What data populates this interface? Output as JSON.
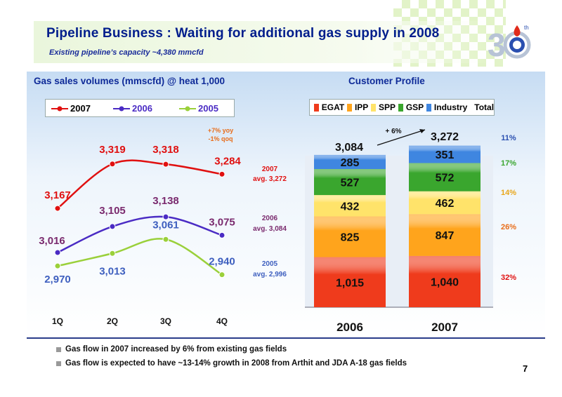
{
  "header": {
    "title": "Pipeline Business : Waiting for additional gas supply in 2008",
    "subtitle": "Existing pipeline’s capacity ~4,380 mmcfd"
  },
  "left_panel": {
    "title": "Gas sales volumes (mmscfd) @ heat 1,000"
  },
  "right_panel": {
    "title": "Customer Profile"
  },
  "colors": {
    "y2007": "#e01010",
    "y2006": "#4a2bc4",
    "y2005": "#9ad03a"
  },
  "chart_data": [
    {
      "type": "line",
      "categories": [
        "1Q",
        "2Q",
        "3Q",
        "4Q"
      ],
      "series": [
        {
          "name": "2007",
          "values": [
            3167,
            3319,
            3318,
            3284
          ],
          "labels": [
            "3,167",
            "3,319",
            "3,318",
            "3,284"
          ]
        },
        {
          "name": "2006",
          "values": [
            3016,
            3105,
            3138,
            3075
          ],
          "labels": [
            "3,016",
            "3,105",
            "3,138",
            "3,075"
          ]
        },
        {
          "name": "2005",
          "values": [
            2970,
            3013,
            3061,
            2940
          ],
          "labels": [
            "2,970",
            "3,013",
            "3,061",
            "2,940"
          ]
        }
      ],
      "annotations": {
        "yoy": "+7% yoy",
        "qoq": "-1% qoq",
        "avg2007_year": "2007",
        "avg2007": "avg. 3,272",
        "avg2006_year": "2006",
        "avg2006": "avg. 3,084",
        "avg2005_year": "2005",
        "avg2005": "avg. 2,996"
      }
    },
    {
      "type": "bar",
      "stacked": true,
      "categories": [
        "2006",
        "2007"
      ],
      "legend": [
        "EGAT",
        "IPP",
        "SPP",
        "GSP",
        "Industry",
        "Total"
      ],
      "series": [
        {
          "name": "EGAT",
          "values": [
            1015,
            1040
          ],
          "labels": [
            "1,015",
            "1,040"
          ],
          "color": "#ef3b1c"
        },
        {
          "name": "IPP",
          "values": [
            825,
            847
          ],
          "labels": [
            "825",
            "847"
          ],
          "color": "#ffa41c"
        },
        {
          "name": "SPP",
          "values": [
            432,
            462
          ],
          "labels": [
            "432",
            "462"
          ],
          "color": "#ffe36a"
        },
        {
          "name": "GSP",
          "values": [
            527,
            572
          ],
          "labels": [
            "527",
            "572"
          ],
          "color": "#3aa62e"
        },
        {
          "name": "Industry",
          "values": [
            285,
            351
          ],
          "labels": [
            "285",
            "351"
          ],
          "color": "#3f86e0"
        }
      ],
      "totals": [
        "3,084",
        "3,272"
      ],
      "growth": "+ 6%",
      "shares_2007": [
        "11%",
        "17%",
        "14%",
        "26%",
        "32%"
      ]
    }
  ],
  "footer": {
    "bullets": [
      "Gas flow in 2007 increased by 6% from existing gas fields",
      "Gas flow is expected to have ~13-14% growth in 2008 from Arthit and JDA A-18 gas fields"
    ],
    "page": "7"
  }
}
